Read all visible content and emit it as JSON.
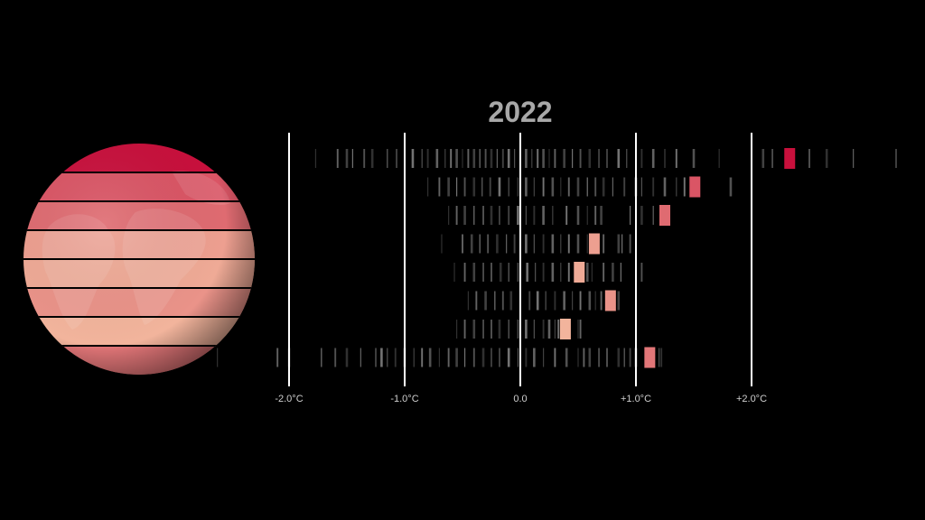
{
  "chart_data": {
    "type": "strip",
    "year": "2022",
    "x_ticks": [
      {
        "value": -2.0,
        "label": "-2.0°C"
      },
      {
        "value": -1.0,
        "label": "-1.0°C"
      },
      {
        "value": 0.0,
        "label": "0.0"
      },
      {
        "value": 1.0,
        "label": "+1.0°C"
      },
      {
        "value": 2.0,
        "label": "+2.0°C"
      }
    ],
    "xlim": [
      -2.6,
      3.3
    ],
    "colors": {
      "background": "#000000",
      "history_mark": "#8a8a8a",
      "gridline": "#ffffff",
      "highlight_high": "#c8103c",
      "highlight_low": "#f2b49c"
    },
    "bands": [
      {
        "current": 2.33,
        "history": [
          -1.77,
          -1.58,
          -1.5,
          -1.45,
          -1.35,
          -1.28,
          -1.15,
          -1.07,
          -0.93,
          -0.85,
          -0.8,
          -0.72,
          -0.65,
          -0.6,
          -0.55,
          -0.5,
          -0.45,
          -0.4,
          -0.35,
          -0.3,
          -0.25,
          -0.2,
          -0.15,
          -0.1,
          -0.05,
          0.0,
          0.05,
          0.1,
          0.15,
          0.2,
          0.25,
          0.3,
          0.38,
          0.45,
          0.52,
          0.6,
          0.68,
          0.75,
          0.85,
          0.92,
          1.05,
          1.15,
          1.25,
          1.35,
          1.5,
          1.72,
          2.0,
          2.1,
          2.18,
          2.5,
          2.65,
          2.88,
          3.25
        ]
      },
      {
        "current": 1.51,
        "history": [
          -0.8,
          -0.7,
          -0.62,
          -0.55,
          -0.48,
          -0.4,
          -0.33,
          -0.26,
          -0.18,
          -0.1,
          -0.02,
          0.05,
          0.12,
          0.2,
          0.28,
          0.35,
          0.42,
          0.5,
          0.58,
          0.65,
          0.72,
          0.8,
          0.9,
          1.0,
          1.05,
          1.15,
          1.25,
          1.35,
          1.42,
          1.82
        ]
      },
      {
        "current": 1.25,
        "history": [
          -0.62,
          -0.55,
          -0.48,
          -0.4,
          -0.32,
          -0.25,
          -0.18,
          -0.1,
          -0.02,
          0.05,
          0.12,
          0.2,
          0.28,
          0.4,
          0.5,
          0.58,
          0.65,
          0.7,
          0.95,
          1.0,
          1.05,
          1.15
        ]
      },
      {
        "current": 0.64,
        "history": [
          -0.68,
          -0.5,
          -0.42,
          -0.35,
          -0.28,
          -0.2,
          -0.12,
          -0.05,
          0.05,
          0.12,
          0.2,
          0.28,
          0.35,
          0.42,
          0.5,
          0.58,
          0.72,
          0.85,
          0.88,
          0.95
        ]
      },
      {
        "current": 0.51,
        "history": [
          -0.57,
          -0.48,
          -0.4,
          -0.32,
          -0.25,
          -0.17,
          -0.1,
          -0.02,
          0.06,
          0.13,
          0.2,
          0.28,
          0.35,
          0.42,
          0.58,
          0.62,
          0.72,
          0.8,
          0.87,
          1.05
        ]
      },
      {
        "current": 0.78,
        "history": [
          -0.45,
          -0.38,
          -0.3,
          -0.22,
          -0.15,
          -0.08,
          0.0,
          0.08,
          0.15,
          0.22,
          0.3,
          0.38,
          0.45,
          0.52,
          0.6,
          0.65,
          0.7,
          0.85
        ]
      },
      {
        "current": 0.39,
        "history": [
          -0.55,
          -0.48,
          -0.4,
          -0.32,
          -0.25,
          -0.18,
          -0.1,
          -0.02,
          0.05,
          0.12,
          0.2,
          0.25,
          0.3,
          0.33,
          0.36,
          0.5,
          0.52
        ]
      },
      {
        "current": 1.12,
        "history": [
          -2.62,
          -2.1,
          -2.0,
          -1.72,
          -1.6,
          -1.5,
          -1.38,
          -1.25,
          -1.2,
          -1.15,
          -1.08,
          -1.0,
          -0.92,
          -0.85,
          -0.78,
          -0.7,
          -0.62,
          -0.55,
          -0.48,
          -0.4,
          -0.32,
          -0.25,
          -0.18,
          -0.1,
          -0.02,
          0.05,
          0.12,
          0.2,
          0.3,
          0.4,
          0.5,
          0.55,
          0.6,
          0.68,
          0.75,
          0.85,
          0.9,
          0.95,
          1.0,
          1.2,
          1.22
        ]
      }
    ]
  }
}
